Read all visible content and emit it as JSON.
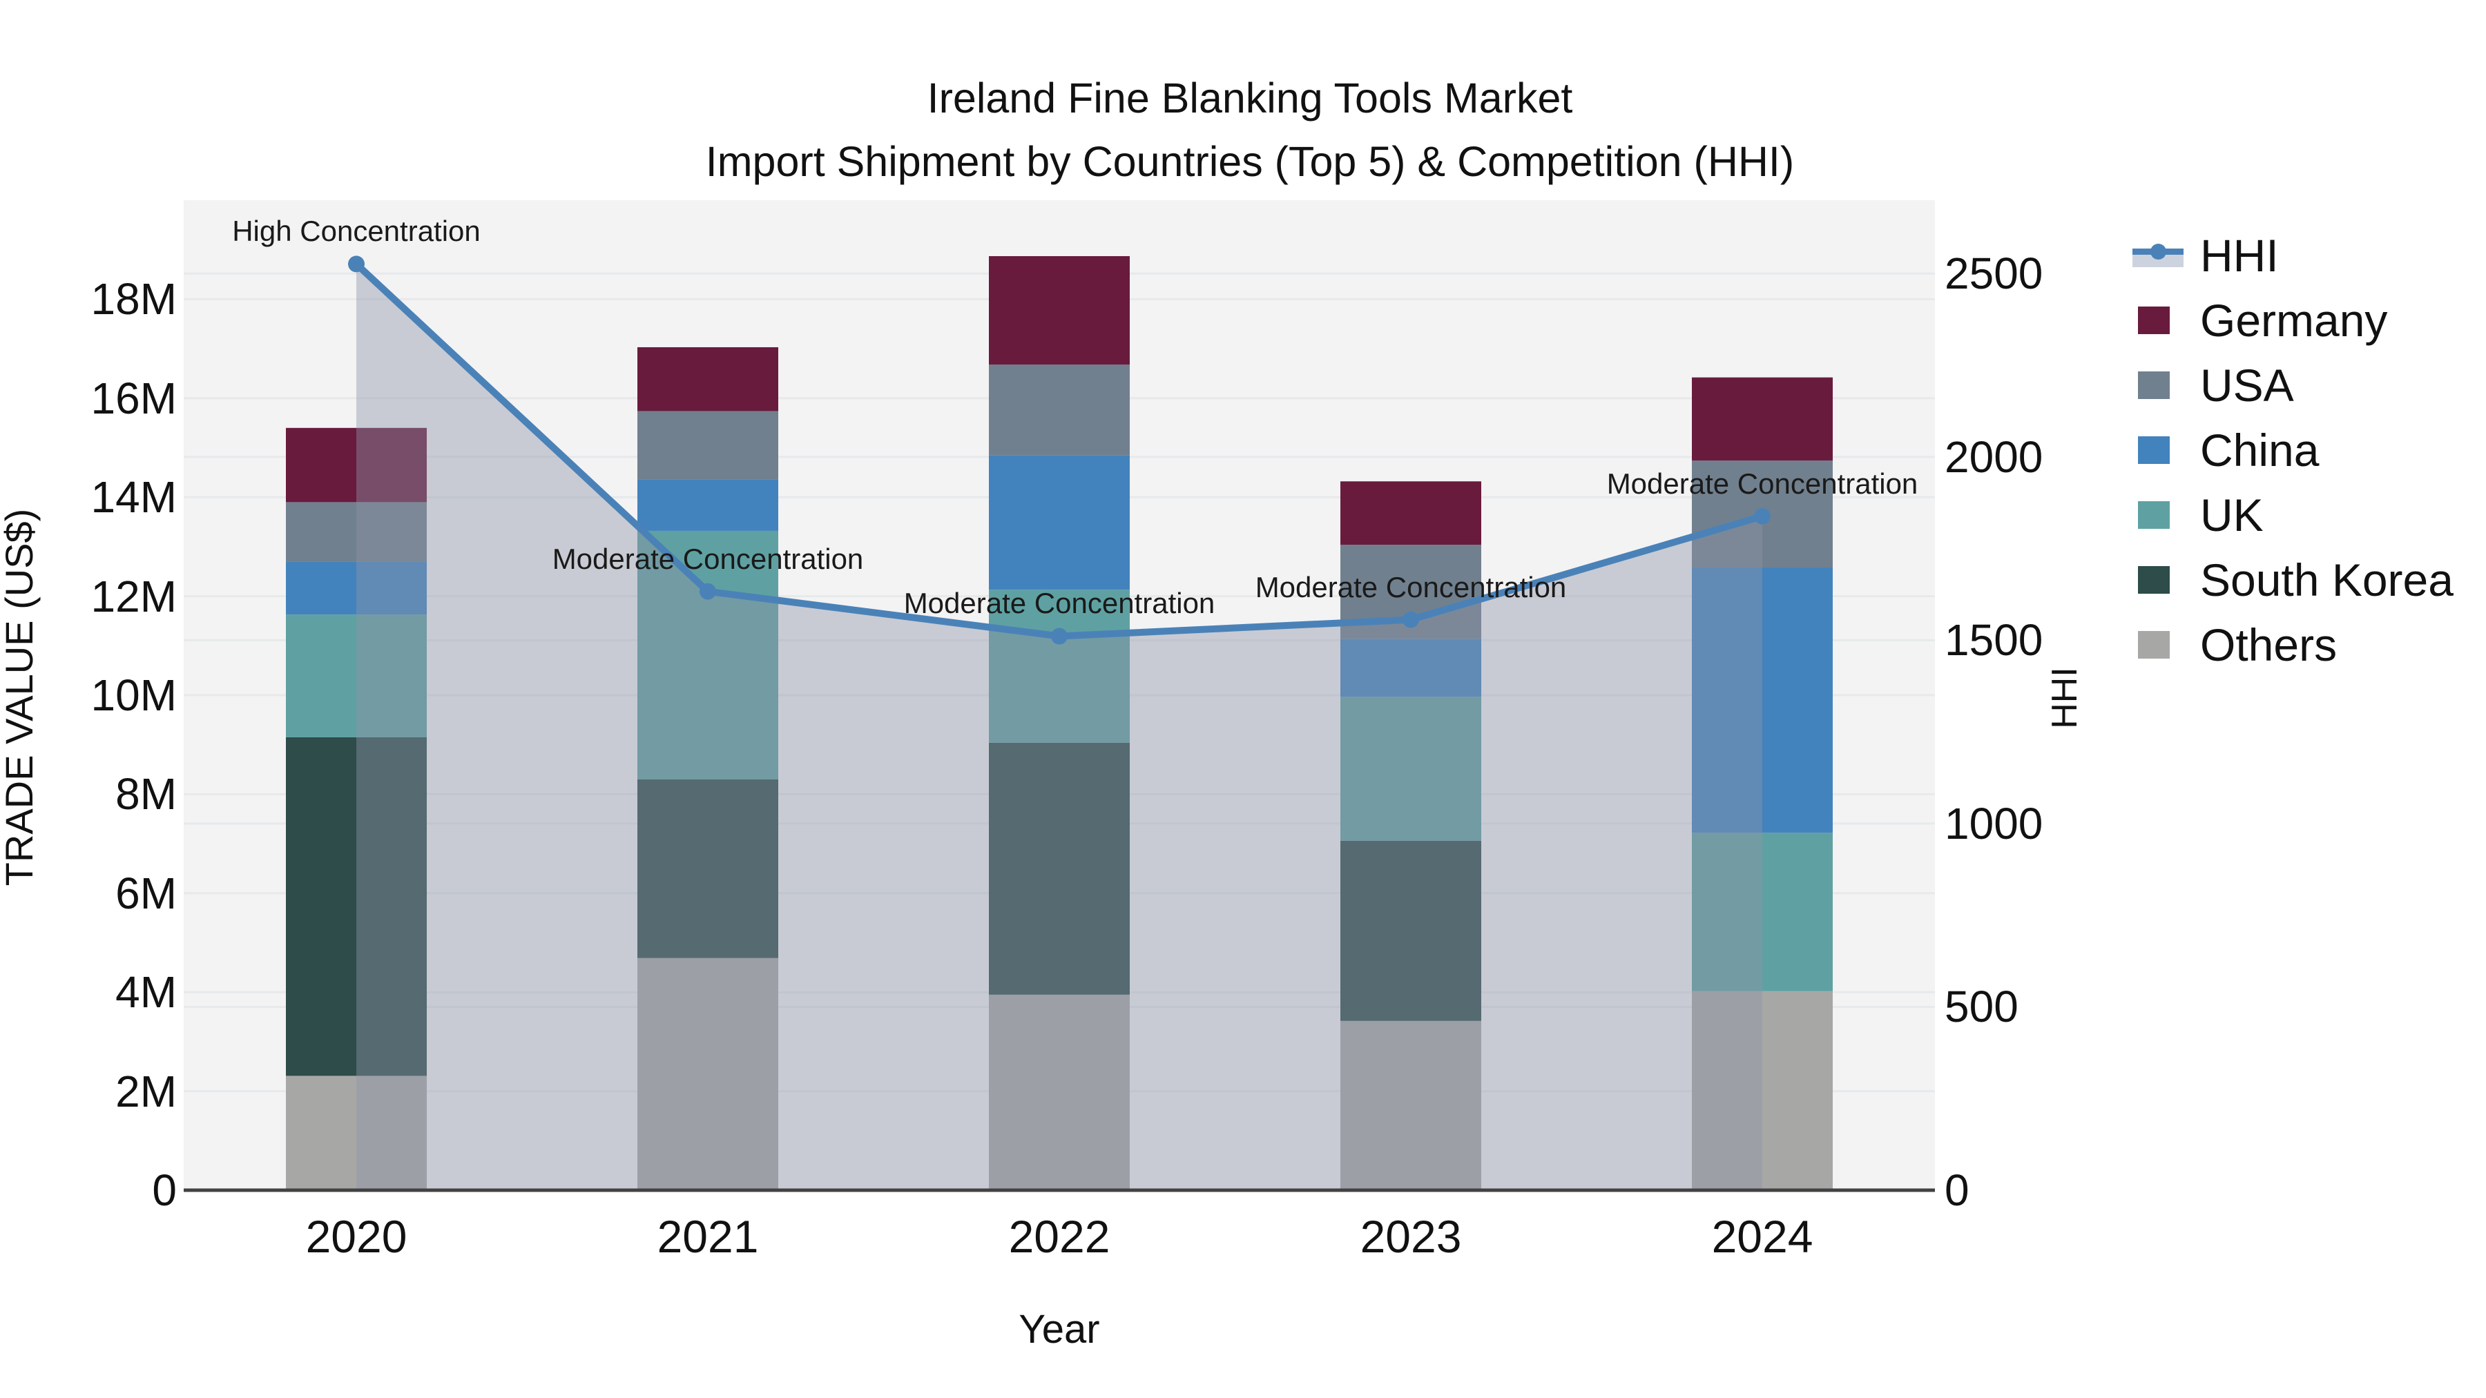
{
  "title": {
    "line1": "Ireland Fine Blanking Tools Market",
    "line2": "Import Shipment by Countries (Top 5) & Competition (HHI)"
  },
  "axes": {
    "left_title": "TRADE VALUE (US$)",
    "right_title": "HHI",
    "x_title": "Year",
    "left_ticks": [
      {
        "label": "0",
        "value": 0
      },
      {
        "label": "2M",
        "value": 2
      },
      {
        "label": "4M",
        "value": 4
      },
      {
        "label": "6M",
        "value": 6
      },
      {
        "label": "8M",
        "value": 8
      },
      {
        "label": "10M",
        "value": 10
      },
      {
        "label": "12M",
        "value": 12
      },
      {
        "label": "14M",
        "value": 14
      },
      {
        "label": "16M",
        "value": 16
      },
      {
        "label": "18M",
        "value": 18
      }
    ],
    "right_ticks": [
      {
        "label": "0",
        "value": 0
      },
      {
        "label": "500",
        "value": 500
      },
      {
        "label": "1000",
        "value": 1000
      },
      {
        "label": "1500",
        "value": 1500
      },
      {
        "label": "2000",
        "value": 2000
      },
      {
        "label": "2500",
        "value": 2500
      }
    ]
  },
  "legend": {
    "items": [
      {
        "label": "HHI",
        "type": "line"
      },
      {
        "label": "Germany",
        "type": "swatch"
      },
      {
        "label": "USA",
        "type": "swatch"
      },
      {
        "label": "China",
        "type": "swatch"
      },
      {
        "label": "UK",
        "type": "swatch"
      },
      {
        "label": "South Korea",
        "type": "swatch"
      },
      {
        "label": "Others",
        "type": "swatch"
      }
    ]
  },
  "annotations": [
    {
      "category": "2020",
      "text": "High Concentration"
    },
    {
      "category": "2021",
      "text": "Moderate Concentration"
    },
    {
      "category": "2022",
      "text": "Moderate Concentration"
    },
    {
      "category": "2023",
      "text": "Moderate Concentration"
    },
    {
      "category": "2024",
      "text": "Moderate Concentration"
    }
  ],
  "colors": {
    "plot_bg": "#f3f3f4",
    "grid": "#e7e9ea",
    "axis_line": "#424242",
    "text": "#111111",
    "hhi_line": "#4a82b8",
    "hhi_area_fill": "rgba(140,148,168,0.42)",
    "hhi_legend_band": "#cdd3de",
    "germany": "#691b3d",
    "usa": "#71808e",
    "china": "#4383bd",
    "uk": "#5fa1a3",
    "south_korea": "#2d4c4a",
    "others": "#a7a7a6"
  },
  "chart_data": {
    "type": "bar+line",
    "title": "Ireland Fine Blanking Tools Market — Import Shipment by Countries (Top 5) & Competition (HHI)",
    "categories": [
      "2020",
      "2021",
      "2022",
      "2023",
      "2024"
    ],
    "values_unit": "million US$",
    "stack_order_bottom_to_top": [
      "Others",
      "South Korea",
      "UK",
      "China",
      "USA",
      "Germany"
    ],
    "series": [
      {
        "name": "Others",
        "color_key": "others",
        "values": [
          2.31,
          4.69,
          3.95,
          3.42,
          4.02
        ]
      },
      {
        "name": "South Korea",
        "color_key": "south_korea",
        "values": [
          6.84,
          3.61,
          5.09,
          3.64,
          0
        ]
      },
      {
        "name": "UK",
        "color_key": "uk",
        "values": [
          2.48,
          5.02,
          3.09,
          2.91,
          3.2
        ]
      },
      {
        "name": "China",
        "color_key": "china",
        "values": [
          1.07,
          1.04,
          2.72,
          1.17,
          5.36
        ]
      },
      {
        "name": "USA",
        "color_key": "usa",
        "values": [
          1.2,
          1.38,
          1.83,
          1.9,
          2.16
        ]
      },
      {
        "name": "Germany",
        "color_key": "germany",
        "values": [
          1.5,
          1.29,
          2.19,
          1.28,
          1.68
        ]
      }
    ],
    "bar_totals": [
      15.4,
      17.03,
      18.87,
      14.32,
      16.42
    ],
    "line_series": {
      "name": "HHI",
      "axis": "right",
      "values": [
        2526,
        1633,
        1511,
        1556,
        1838
      ]
    },
    "xlabel": "Year",
    "ylabel_left": "TRADE VALUE (US$)",
    "ylabel_right": "HHI",
    "ylim_left_musd": [
      0,
      20
    ],
    "ylim_right": [
      0,
      2700
    ],
    "grid": "both-axes-horizontal",
    "legend_position": "outside-right-top"
  }
}
